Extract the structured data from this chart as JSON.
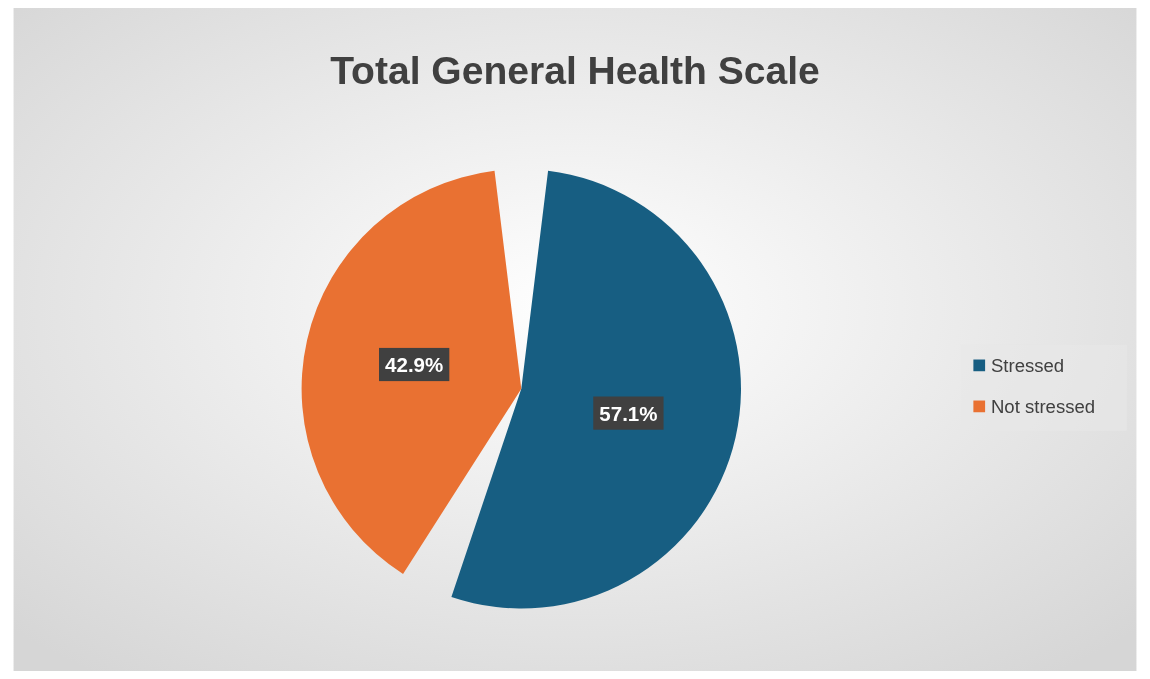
{
  "chart_data": {
    "type": "pie",
    "title": "Total General Health Scale",
    "categories": [
      "Stressed",
      "Not stressed"
    ],
    "values": [
      57.1,
      42.9
    ],
    "value_labels": [
      "57.1%",
      "42.9%"
    ],
    "colors": [
      "#175e82",
      "#e97132"
    ],
    "legend": "right"
  }
}
